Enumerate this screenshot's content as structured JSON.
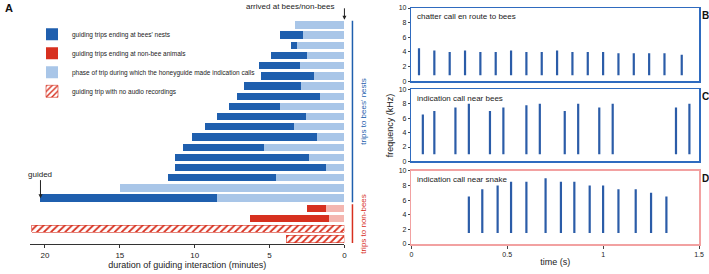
{
  "chart_data": [
    {
      "type": "bar",
      "orientation": "horizontal",
      "stacked": true,
      "grid": false,
      "legend": "top-left",
      "tick_labels": "x",
      "x_label": "duration of guiding interaction (minutes)",
      "xlim": [
        21,
        0
      ],
      "xticks": [
        20,
        15,
        10,
        5,
        0
      ],
      "categories": [
        null,
        null,
        null,
        null,
        null,
        null,
        null,
        null,
        null,
        null,
        null,
        null,
        null,
        null,
        null,
        null,
        null,
        null,
        null,
        null,
        null,
        null
      ],
      "series": [
        {
          "name": "guiding trips ending at bees' nests",
          "color": "#1f5fae",
          "values": [
            null,
            1.5,
            0.4,
            2.4,
            2.7,
            3.6,
            3.8,
            5.6,
            3.4,
            5.9,
            5.9,
            8.4,
            5.4,
            8.9,
            10.1,
            7.2,
            null,
            11.8,
            null,
            null,
            null,
            null
          ]
        },
        {
          "name": "guiding trips ending at non-bee animals",
          "color": "#d7301f",
          "values": [
            null,
            null,
            null,
            null,
            null,
            null,
            null,
            null,
            null,
            null,
            null,
            null,
            null,
            null,
            null,
            null,
            null,
            null,
            1.3,
            5.3,
            null,
            null
          ]
        },
        {
          "name": "phase of trip during which the honeyguide made indication calls",
          "colors": [
            "#a9c6e8",
            "#a9c6e8",
            "#a9c6e8",
            "#a9c6e8",
            "#a9c6e8",
            "#a9c6e8",
            "#a9c6e8",
            "#a9c6e8",
            "#a9c6e8",
            "#a9c6e8",
            "#a9c6e8",
            "#a9c6e8",
            "#a9c6e8",
            "#a9c6e8",
            "#a9c6e8",
            "#a9c6e8",
            "#a9c6e8",
            "#a9c6e8",
            "#f4b6b0",
            "#f4b6b0",
            "#f4b6b0",
            "#f4b6b0"
          ],
          "values": [
            3.3,
            2.8,
            3.2,
            2.5,
            3.0,
            2.0,
            2.9,
            1.6,
            4.3,
            2.6,
            3.4,
            1.8,
            5.4,
            2.4,
            1.2,
            4.6,
            15.0,
            8.5,
            1.2,
            1.0,
            null,
            null
          ]
        },
        {
          "name": "guiding trip with no audio recordings",
          "color": "#d7301f",
          "marker": "hatched",
          "values": [
            null,
            null,
            null,
            null,
            null,
            null,
            null,
            null,
            null,
            null,
            null,
            null,
            null,
            null,
            null,
            null,
            null,
            null,
            null,
            null,
            20.9,
            3.9
          ]
        }
      ],
      "annotations": [
        {
          "text": "A"
        },
        {
          "text": "guided",
          "x": 20.3,
          "y": 17
        },
        {
          "text": "arrived at bees/non-bees",
          "x": 0
        },
        {
          "text": "trips to bees' nests",
          "y": [
            0,
            17
          ],
          "color": "#1f5fae"
        },
        {
          "text": "trips to non-bees",
          "y": [
            18,
            21
          ],
          "color": "#d7301f"
        }
      ]
    },
    {
      "type": "spectrogram",
      "title": "chatter call en route to bees",
      "tick_labels": "y",
      "color": "#2b5ca8",
      "xlim": [
        0,
        1.5
      ],
      "xticks": [
        0,
        0.5,
        1,
        1.5
      ],
      "ylim": [
        0,
        10
      ],
      "yticks": [
        0,
        2,
        4,
        6,
        8,
        10
      ],
      "x": [
        0.04,
        0.12,
        0.2,
        0.28,
        0.36,
        0.44,
        0.52,
        0.6,
        0.68,
        0.76,
        0.84,
        0.92,
        1.0,
        1.08,
        1.16,
        1.24,
        1.32,
        1.41
      ],
      "values": [
        4.5,
        4.2,
        4.0,
        4.2,
        4.0,
        4.0,
        4.2,
        4.0,
        4.0,
        4.2,
        4.0,
        4.0,
        4.0,
        3.8,
        3.8,
        3.8,
        3.8,
        3.6
      ],
      "base": [
        0.8,
        0.8,
        0.8,
        0.8,
        0.8,
        0.8,
        0.8,
        0.8,
        0.8,
        0.8,
        0.8,
        0.8,
        0.8,
        0.8,
        0.8,
        0.8,
        0.8,
        0.8
      ],
      "annotations": [
        {
          "text": "B"
        }
      ]
    },
    {
      "type": "spectrogram",
      "title": "indication call near bees",
      "tick_labels": "y",
      "color": "#2b5ca8",
      "y_label": "frequency (kHz)",
      "xlim": [
        0,
        1.5
      ],
      "xticks": [
        0,
        0.5,
        1,
        1.5
      ],
      "ylim": [
        0,
        10
      ],
      "yticks": [
        0,
        2,
        4,
        6,
        8,
        10
      ],
      "x": [
        0.06,
        0.12,
        0.23,
        0.3,
        0.41,
        0.48,
        0.6,
        0.67,
        0.8,
        0.87,
        0.98,
        1.05,
        1.38,
        1.45
      ],
      "values": [
        6.5,
        7.0,
        7.5,
        8.0,
        7.0,
        7.5,
        7.8,
        8.0,
        7.0,
        8.0,
        7.5,
        8.0,
        7.5,
        8.0
      ],
      "base": [
        1.0,
        1.0,
        1.0,
        1.0,
        1.0,
        1.0,
        1.0,
        1.0,
        1.0,
        1.0,
        1.0,
        1.0,
        1.0,
        1.0
      ],
      "annotations": [
        {
          "text": "C"
        }
      ]
    },
    {
      "type": "spectrogram",
      "title": "indication call near snake",
      "color": "#2b5ca8",
      "x_label": "time (s)",
      "xlim": [
        0,
        1.5
      ],
      "xticks": [
        0,
        0.5,
        1,
        1.5
      ],
      "ylim": [
        0,
        10
      ],
      "yticks": [
        0,
        2,
        4,
        6,
        8,
        10
      ],
      "x": [
        0.3,
        0.37,
        0.45,
        0.52,
        0.6,
        0.7,
        0.78,
        0.85,
        0.93,
        1.0,
        1.08,
        1.17,
        1.25,
        1.33
      ],
      "values": [
        6.5,
        7.5,
        8.0,
        8.5,
        8.5,
        9.0,
        8.5,
        8.5,
        8.0,
        8.0,
        7.5,
        7.5,
        7.0,
        6.5
      ],
      "base": [
        1.5,
        1.5,
        1.5,
        1.5,
        1.5,
        1.5,
        1.5,
        1.5,
        1.5,
        1.5,
        1.5,
        1.5,
        1.5,
        1.5
      ],
      "annotations": [
        {
          "text": "D"
        }
      ]
    }
  ]
}
